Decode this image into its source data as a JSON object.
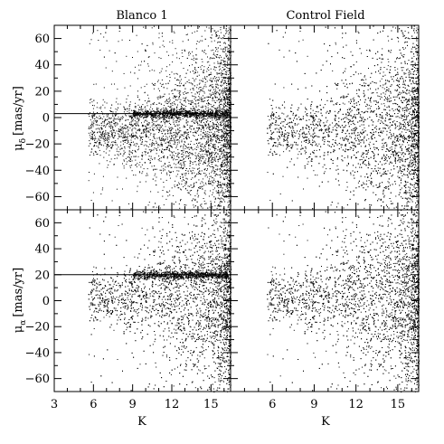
{
  "chart_data": {
    "type": "scatter",
    "panel_titles": [
      "Blanco 1",
      "Control Field"
    ],
    "xlabel": "K",
    "ylabel_top": "μδ [mas/yr]",
    "ylabel_bottom": "μα [mas/yr]",
    "ylabel_top_parts": {
      "symbol": "μ",
      "subscript": "δ",
      "unit": "[mas/yr]"
    },
    "ylabel_bottom_parts": {
      "symbol": "μ",
      "subscript": "α",
      "unit": "[mas/yr]"
    },
    "xlim_left": [
      3,
      16.5
    ],
    "xlim_right": [
      3,
      16.5
    ],
    "ylim": [
      -70,
      70
    ],
    "x_ticks_left": [
      3,
      6,
      9,
      12,
      15
    ],
    "x_ticks_right": [
      6,
      9,
      12,
      15
    ],
    "y_ticks": [
      -60,
      -40,
      -20,
      0,
      20,
      40,
      60
    ],
    "panels": [
      {
        "id": "blanco1-mu-delta",
        "title": "Blanco 1",
        "ref_line_y": 3,
        "ref_line_x_end": 15.2,
        "cluster_center_y": -10,
        "cluster_fraction": 0.4
      },
      {
        "id": "control-mu-delta",
        "title": "Control Field",
        "ref_line_y": null,
        "cluster_center_y": -10,
        "cluster_fraction": 0.0
      },
      {
        "id": "blanco1-mu-alpha",
        "title": "Blanco 1",
        "ref_line_y": 20,
        "ref_line_x_end": 15.2,
        "cluster_center_y": 3,
        "cluster_fraction": 0.4
      },
      {
        "id": "control-mu-alpha",
        "title": "Control Field",
        "ref_line_y": null,
        "cluster_center_y": 3,
        "cluster_fraction": 0.0
      }
    ],
    "grid": false
  }
}
